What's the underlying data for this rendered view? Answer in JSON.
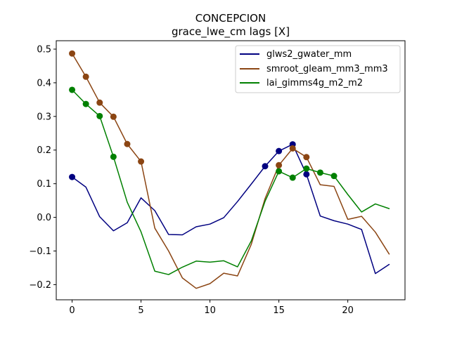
{
  "chart_data": {
    "type": "line",
    "title": "CONCEPCION",
    "subtitle": "grace_lwe_cm lags [X]",
    "xlabel": "",
    "ylabel": "",
    "xlim": [
      -1.15,
      24.15
    ],
    "ylim": [
      -0.245,
      0.525
    ],
    "xticks": [
      0,
      5,
      10,
      15,
      20
    ],
    "yticks": [
      -0.2,
      -0.1,
      0.0,
      0.1,
      0.2,
      0.3,
      0.4,
      0.5
    ],
    "ytick_labels": [
      "−0.2",
      "−0.1",
      "0.0",
      "0.1",
      "0.2",
      "0.3",
      "0.4",
      "0.5"
    ],
    "grid": false,
    "legend_position": "top-right",
    "x": [
      0,
      1,
      2,
      3,
      4,
      5,
      6,
      7,
      8,
      9,
      10,
      11,
      12,
      13,
      14,
      15,
      16,
      17,
      18,
      19,
      20,
      21,
      22,
      23
    ],
    "series": [
      {
        "name": "glws2_gwater_mm",
        "color": "#000080",
        "values": [
          0.12,
          0.09,
          0.002,
          -0.04,
          -0.016,
          0.058,
          0.02,
          -0.051,
          -0.052,
          -0.028,
          -0.02,
          -0.001,
          0.047,
          0.099,
          0.152,
          0.197,
          0.217,
          0.128,
          0.004,
          -0.01,
          -0.02,
          -0.036,
          -0.167,
          -0.14
        ],
        "markers": [
          0,
          14,
          15,
          16,
          17
        ]
      },
      {
        "name": "smroot_gleam_mm3_mm3",
        "color": "#8b4513",
        "values": [
          0.487,
          0.418,
          0.341,
          0.299,
          0.218,
          0.166,
          -0.032,
          -0.1,
          -0.18,
          -0.211,
          -0.197,
          -0.166,
          -0.174,
          -0.08,
          0.056,
          0.155,
          0.205,
          0.179,
          0.097,
          0.092,
          -0.006,
          0.003,
          -0.044,
          -0.109
        ],
        "markers": [
          0,
          1,
          2,
          3,
          4,
          5,
          15,
          16,
          17
        ]
      },
      {
        "name": "lai_gimms4g_m2_m2",
        "color": "#008000",
        "values": [
          0.379,
          0.337,
          0.301,
          0.18,
          0.045,
          -0.043,
          -0.16,
          -0.17,
          -0.148,
          -0.13,
          -0.133,
          -0.129,
          -0.147,
          -0.07,
          0.048,
          0.137,
          0.118,
          0.145,
          0.133,
          0.123,
          0.068,
          0.016,
          0.04,
          0.026
        ],
        "markers": [
          0,
          1,
          2,
          3,
          15,
          16,
          17,
          18,
          19
        ]
      }
    ]
  }
}
